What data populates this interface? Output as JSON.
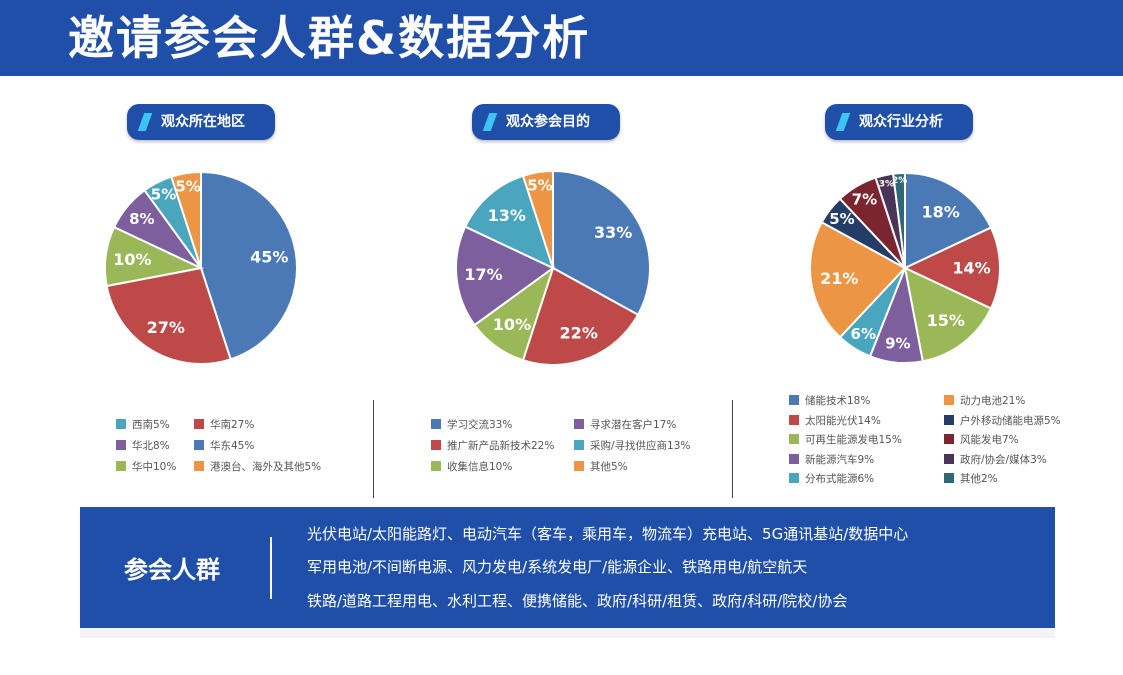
{
  "header": {
    "title": "邀请参会人群&数据分析"
  },
  "charts_colors": {
    "blue": "#4a79b6",
    "red": "#bd4a48",
    "green": "#9ab858",
    "purple": "#7d5f9e",
    "teal": "#4aa6bf",
    "orange": "#ec9544",
    "navy": "#233d66",
    "maroon": "#7b2530",
    "plum": "#4b3458",
    "darkteal": "#2e6877"
  },
  "chart_data": [
    {
      "type": "pie",
      "title": "观众所在地区",
      "slices": [
        {
          "label": "华东45%",
          "value": 45,
          "data_label": "45%",
          "color": "#4a79b6"
        },
        {
          "label": "华南27%",
          "value": 27,
          "data_label": "27%",
          "color": "#bd4a48"
        },
        {
          "label": "华中10%",
          "value": 10,
          "data_label": "10%",
          "color": "#9ab858"
        },
        {
          "label": "华北8%",
          "value": 8,
          "data_label": "8%",
          "color": "#7d5f9e"
        },
        {
          "label": "西南5%",
          "value": 5,
          "data_label": "5%",
          "color": "#4aa6bf"
        },
        {
          "label": "港澳台、海外及其他5%",
          "value": 5,
          "data_label": "5%",
          "color": "#ec9544"
        }
      ],
      "legend_order": [
        4,
        1,
        3,
        0,
        2,
        5
      ]
    },
    {
      "type": "pie",
      "title": "观众参会目的",
      "slices": [
        {
          "label": "学习交流33%",
          "value": 33,
          "data_label": "33%",
          "color": "#4a79b6"
        },
        {
          "label": "推广新产品新技术22%",
          "value": 22,
          "data_label": "22%",
          "color": "#bd4a48"
        },
        {
          "label": "收集信息10%",
          "value": 10,
          "data_label": "10%",
          "color": "#9ab858"
        },
        {
          "label": "寻求潜在客户17%",
          "value": 17,
          "data_label": "17%",
          "color": "#7d5f9e"
        },
        {
          "label": "采购/寻找供应商13%",
          "value": 13,
          "data_label": "13%",
          "color": "#4aa6bf"
        },
        {
          "label": "其他5%",
          "value": 5,
          "data_label": "5%",
          "color": "#ec9544"
        }
      ],
      "legend_order": [
        0,
        3,
        1,
        4,
        2,
        5
      ]
    },
    {
      "type": "pie",
      "title": "观众行业分析",
      "slices": [
        {
          "label": "储能技术18%",
          "value": 18,
          "data_label": "18%",
          "color": "#4a79b6"
        },
        {
          "label": "太阳能光伏14%",
          "value": 14,
          "data_label": "14%",
          "color": "#bd4a48"
        },
        {
          "label": "可再生能源发电15%",
          "value": 15,
          "data_label": "15%",
          "color": "#9ab858"
        },
        {
          "label": "新能源汽车9%",
          "value": 9,
          "data_label": "9%",
          "color": "#7d5f9e"
        },
        {
          "label": "分布式能源6%",
          "value": 6,
          "data_label": "6%",
          "color": "#4aa6bf"
        },
        {
          "label": "动力电池21%",
          "value": 21,
          "data_label": "21%",
          "color": "#ec9544"
        },
        {
          "label": "户外移动储能电源5%",
          "value": 5,
          "data_label": "5%",
          "color": "#233d66"
        },
        {
          "label": "风能发电7%",
          "value": 7,
          "data_label": "7%",
          "color": "#7b2530"
        },
        {
          "label": "政府/协会/媒体3%",
          "value": 3,
          "data_label": "3%",
          "color": "#4b3458"
        },
        {
          "label": "其他2%",
          "value": 2,
          "data_label": "2%",
          "color": "#2e6877"
        }
      ],
      "legend_order": [
        0,
        5,
        1,
        6,
        2,
        7,
        3,
        8,
        4,
        9
      ]
    }
  ],
  "bottom": {
    "title": "参会人群",
    "lines": [
      "光伏电站/太阳能路灯、电动汽车（客车，乘用车，物流车）充电站、5G通讯基站/数据中心",
      "军用电池/不间断电源、风力发电/系统发电厂/能源企业、铁路用电/航空航天",
      "铁路/道路工程用电、水利工程、便携储能、政府/科研/租赁、政府/科研/院校/协会"
    ]
  }
}
